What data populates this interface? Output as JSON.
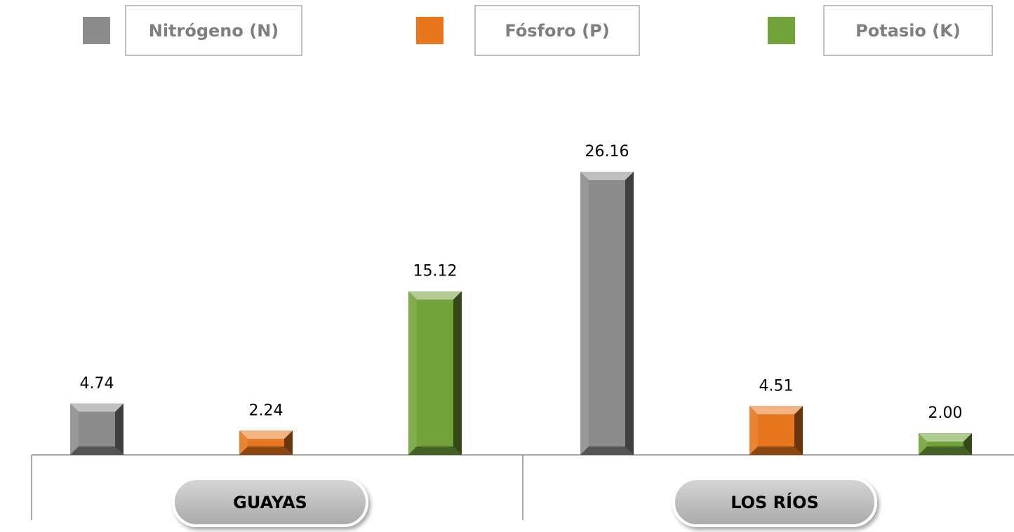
{
  "chart_data": {
    "type": "bar",
    "categories": [
      "GUAYAS",
      "LOS RÍOS"
    ],
    "series": [
      {
        "name": "Nitrógeno (N)",
        "color": "#8c8c8c",
        "values": [
          4.74,
          26.16
        ],
        "value_labels": [
          "4.74",
          "26.16"
        ]
      },
      {
        "name": "Fósforo (P)",
        "color": "#e8761e",
        "values": [
          2.24,
          4.51
        ],
        "value_labels": [
          "2.24",
          "4.51"
        ]
      },
      {
        "name": "Potasio (K)",
        "color": "#72a33a",
        "values": [
          15.12,
          2.0
        ],
        "value_labels": [
          "15.12",
          "2.00"
        ]
      }
    ],
    "legend": "top"
  }
}
